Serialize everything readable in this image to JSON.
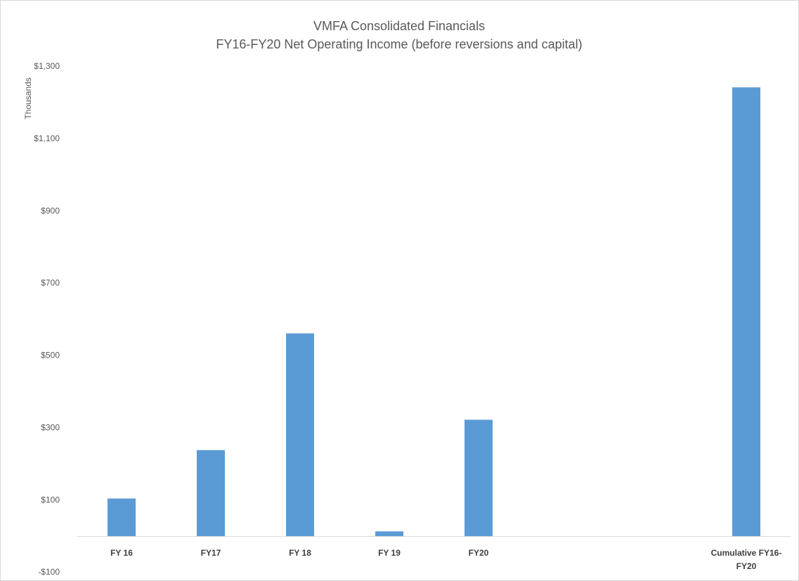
{
  "chart_data": {
    "type": "bar",
    "title": "VMFA Consolidated Financials",
    "subtitle": "FY16-FY20 Net Operating Income (before reversions and capital)",
    "y_label": "Thousands",
    "categories": [
      "FY 16",
      "FY17",
      "FY 18",
      "FY 19",
      "FY20",
      null,
      null,
      "Cumulative FY16-FY20"
    ],
    "values": [
      105,
      239,
      562,
      14,
      323,
      null,
      null,
      1243
    ],
    "color": "#5b9bd5",
    "ylim": [
      -100,
      1300
    ],
    "yticks": [
      {
        "value": -100,
        "label": "-$100"
      },
      {
        "value": 100,
        "label": "$100"
      },
      {
        "value": 300,
        "label": "$300"
      },
      {
        "value": 500,
        "label": "$500"
      },
      {
        "value": 700,
        "label": "$700"
      },
      {
        "value": 900,
        "label": "$900"
      },
      {
        "value": 1100,
        "label": "$1,100"
      },
      {
        "value": 1300,
        "label": "$1,300"
      }
    ],
    "grid": false
  }
}
